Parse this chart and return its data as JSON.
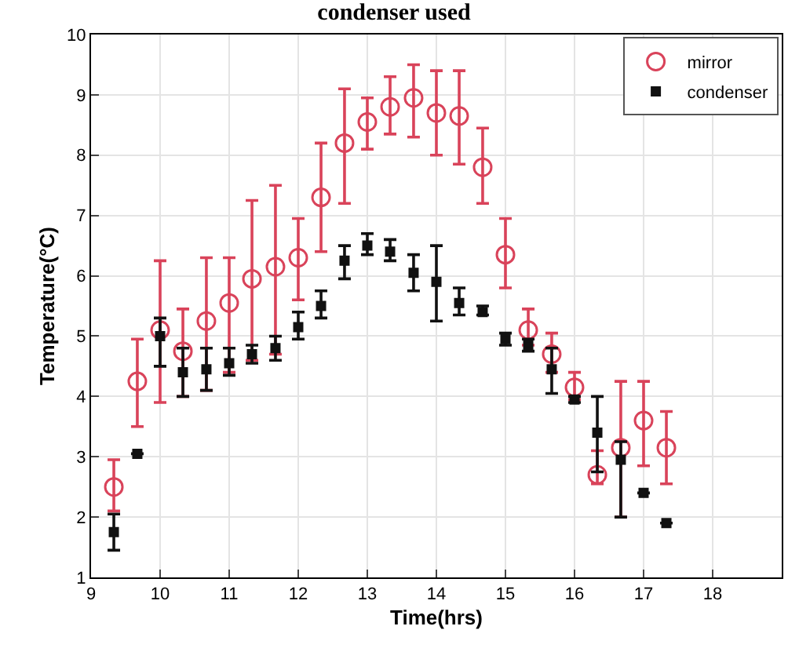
{
  "chart_data": {
    "type": "scatter",
    "title": "condenser used",
    "xlabel": "Time(hrs)",
    "ylabel": "Temperature(°C)",
    "xlim": [
      9,
      19
    ],
    "xticks": [
      9,
      10,
      11,
      12,
      13,
      14,
      15,
      16,
      17,
      18
    ],
    "ylim": [
      1,
      10
    ],
    "yticks": [
      1,
      2,
      3,
      4,
      5,
      6,
      7,
      8,
      9,
      10
    ],
    "grid": true,
    "legend": "top right",
    "x": [
      9.33,
      9.67,
      10,
      10.33,
      10.67,
      11,
      11.33,
      11.67,
      12,
      12.33,
      12.67,
      13,
      13.33,
      13.67,
      14,
      14.33,
      14.67,
      15,
      15.33,
      15.67,
      16,
      16.33,
      16.67,
      17,
      17.33
    ],
    "series": [
      {
        "name": "mirror",
        "color": "#d9435a",
        "marker": "circle",
        "values": [
          2.5,
          4.25,
          5.1,
          4.75,
          5.25,
          5.55,
          5.95,
          6.15,
          6.3,
          7.3,
          8.2,
          8.55,
          8.8,
          8.95,
          8.7,
          8.65,
          7.8,
          6.35,
          5.1,
          4.7,
          4.15,
          2.7,
          3.15,
          3.6,
          3.15
        ],
        "errors": [
          [
            2.1,
            2.95
          ],
          [
            3.5,
            4.95
          ],
          [
            3.9,
            6.25
          ],
          [
            4.0,
            5.45
          ],
          [
            4.1,
            6.3
          ],
          [
            4.4,
            6.3
          ],
          [
            4.6,
            7.25
          ],
          [
            4.7,
            7.5
          ],
          [
            5.6,
            6.95
          ],
          [
            6.4,
            8.2
          ],
          [
            7.2,
            9.1
          ],
          [
            8.1,
            8.95
          ],
          [
            8.35,
            9.3
          ],
          [
            8.3,
            9.5
          ],
          [
            8.0,
            9.4
          ],
          [
            7.85,
            9.4
          ],
          [
            7.2,
            8.45
          ],
          [
            5.8,
            6.95
          ],
          [
            4.85,
            5.45
          ],
          [
            4.4,
            5.05
          ],
          [
            3.95,
            4.4
          ],
          [
            2.55,
            3.1
          ],
          [
            2.0,
            4.25
          ],
          [
            2.85,
            4.25
          ],
          [
            2.55,
            3.75
          ]
        ]
      },
      {
        "name": "condenser",
        "color": "#111111",
        "marker": "square",
        "values": [
          1.75,
          3.05,
          5.0,
          4.4,
          4.45,
          4.55,
          4.7,
          4.8,
          5.15,
          5.5,
          6.25,
          6.5,
          6.4,
          6.05,
          5.9,
          5.55,
          5.4,
          4.95,
          4.85,
          4.45,
          3.95,
          3.4,
          2.95,
          2.4,
          1.9
        ],
        "errors": [
          [
            1.45,
            2.05
          ],
          null,
          [
            4.5,
            5.3
          ],
          [
            4.0,
            4.8
          ],
          [
            4.1,
            4.8
          ],
          [
            4.35,
            4.8
          ],
          [
            4.55,
            4.85
          ],
          [
            4.6,
            5.0
          ],
          [
            4.95,
            5.4
          ],
          [
            5.3,
            5.75
          ],
          [
            5.95,
            6.5
          ],
          [
            6.35,
            6.7
          ],
          [
            6.25,
            6.6
          ],
          [
            5.75,
            6.35
          ],
          [
            5.25,
            6.5
          ],
          [
            5.35,
            5.8
          ],
          [
            5.35,
            5.5
          ],
          [
            4.85,
            5.05
          ],
          [
            4.75,
            4.95
          ],
          [
            4.05,
            4.8
          ],
          [
            3.9,
            4.0
          ],
          [
            2.75,
            4.0
          ],
          [
            2.0,
            3.25
          ],
          null,
          null
        ]
      }
    ]
  }
}
